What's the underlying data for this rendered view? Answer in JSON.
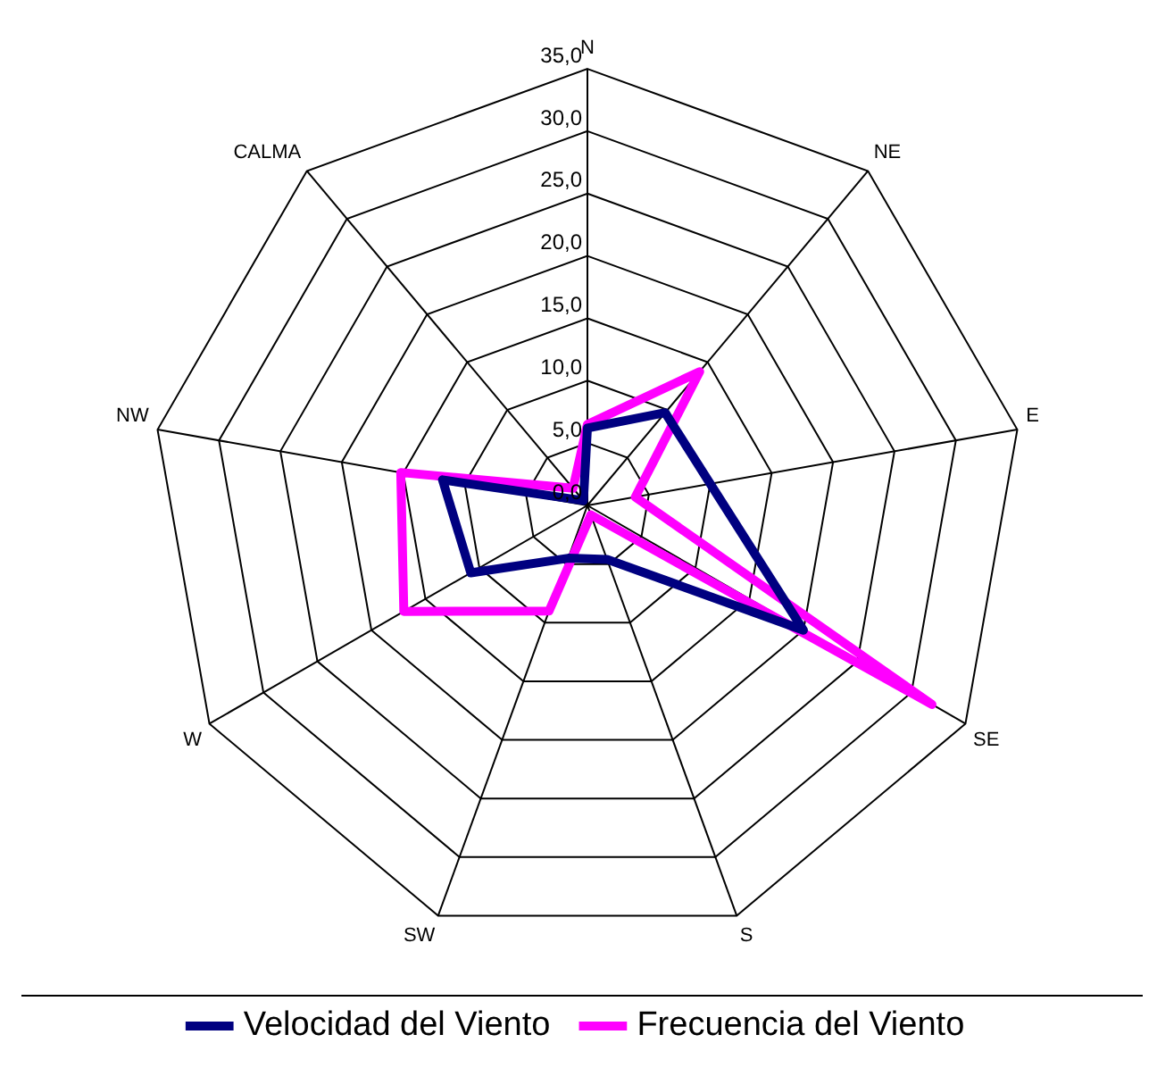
{
  "chart_data": {
    "type": "radar",
    "categories": [
      "N",
      "NE",
      "E",
      "SE",
      "S",
      "SW",
      "W",
      "NW",
      "CALMA"
    ],
    "series": [
      {
        "name": "Velocidad del Viento",
        "color": "#000080",
        "values": [
          6.2,
          9.7,
          10,
          20,
          4.6,
          4.5,
          10.8,
          11.8,
          0.5
        ]
      },
      {
        "name": "Frecuencia del Viento",
        "color": "#ff00ff",
        "values": [
          6.5,
          14,
          3.9,
          31.9,
          0.8,
          9,
          17,
          15.2,
          1.8
        ]
      }
    ],
    "ylim": [
      0,
      35
    ],
    "yticks": [
      {
        "value": 0,
        "label": "0,0"
      },
      {
        "value": 5,
        "label": "5,0"
      },
      {
        "value": 10,
        "label": "10,0"
      },
      {
        "value": 15,
        "label": "15,0"
      },
      {
        "value": 20,
        "label": "20,0"
      },
      {
        "value": 25,
        "label": "25,0"
      },
      {
        "value": 30,
        "label": "30,0"
      },
      {
        "value": 35,
        "label": "35,0"
      }
    ],
    "grid": true,
    "legend": "bottom",
    "marker": "none",
    "line_style": "solid"
  }
}
